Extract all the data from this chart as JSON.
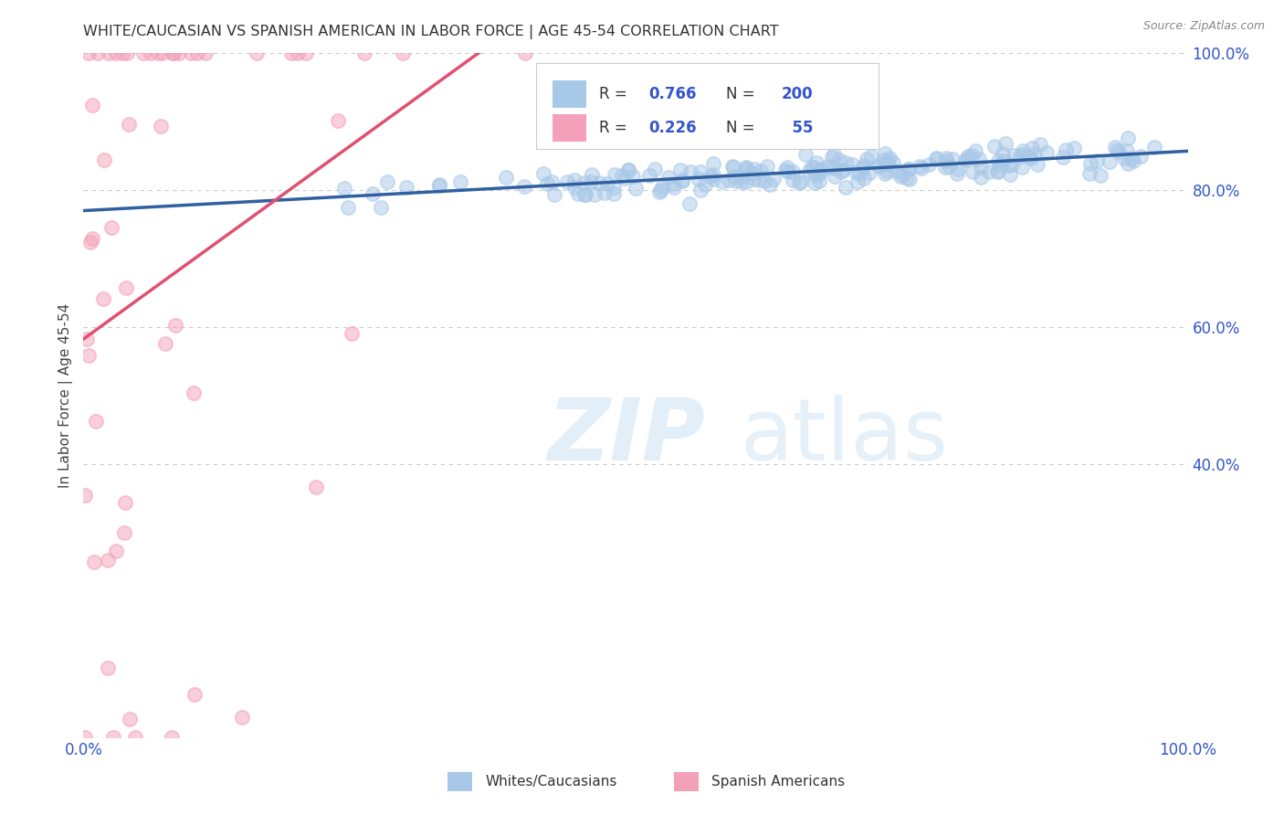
{
  "title": "WHITE/CAUCASIAN VS SPANISH AMERICAN IN LABOR FORCE | AGE 45-54 CORRELATION CHART",
  "source": "Source: ZipAtlas.com",
  "ylabel": "In Labor Force | Age 45-54",
  "blue_R": 0.766,
  "blue_N": 200,
  "pink_R": 0.226,
  "pink_N": 55,
  "legend_labels": [
    "Whites/Caucasians",
    "Spanish Americans"
  ],
  "blue_color": "#a8c8e8",
  "pink_color": "#f4a0b8",
  "blue_line_color": "#3060a0",
  "pink_line_color": "#e05070",
  "axis_color": "#3355cc",
  "grid_color": "#cccccc",
  "background_color": "#ffffff",
  "seed": 42,
  "xlim": [
    0,
    1
  ],
  "ylim": [
    0,
    1
  ],
  "yticks": [
    0.4,
    0.6,
    0.8,
    1.0
  ],
  "ytick_labels": [
    "40.0%",
    "60.0%",
    "80.0%",
    "100.0%"
  ],
  "xtick_positions": [
    0,
    0.5,
    1.0
  ],
  "xtick_labels": [
    "0.0%",
    "",
    "100.0%"
  ]
}
